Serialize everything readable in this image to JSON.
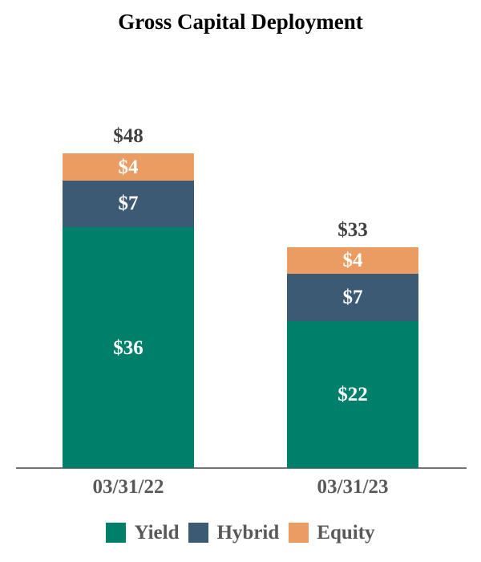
{
  "chart_data": {
    "type": "bar",
    "stacked": true,
    "title": "Gross Capital Deployment",
    "categories": [
      "03/31/22",
      "03/31/23"
    ],
    "series": [
      {
        "name": "Yield",
        "color": "#00806B",
        "values": [
          36,
          22
        ]
      },
      {
        "name": "Hybrid",
        "color": "#3D5A74",
        "values": [
          7,
          7
        ]
      },
      {
        "name": "Equity",
        "color": "#EB9C62",
        "values": [
          4,
          4
        ]
      }
    ],
    "totals": [
      48,
      33
    ],
    "value_prefix": "$",
    "total_labels": [
      "$48",
      "$33"
    ],
    "segment_labels": [
      [
        "$36",
        "$7",
        "$4"
      ],
      [
        "$22",
        "$7",
        "$4"
      ]
    ],
    "ylim": [
      0,
      48
    ],
    "grid": false,
    "legend_position": "bottom",
    "legend_items": [
      "Yield",
      "Hybrid",
      "Equity"
    ],
    "colors": {
      "total_label": "#404040",
      "segment_label": "#FFFFFF",
      "axis_label": "#595959",
      "legend_label": "#595959",
      "axis_line": "#737373",
      "background": "#FFFFFF"
    }
  }
}
